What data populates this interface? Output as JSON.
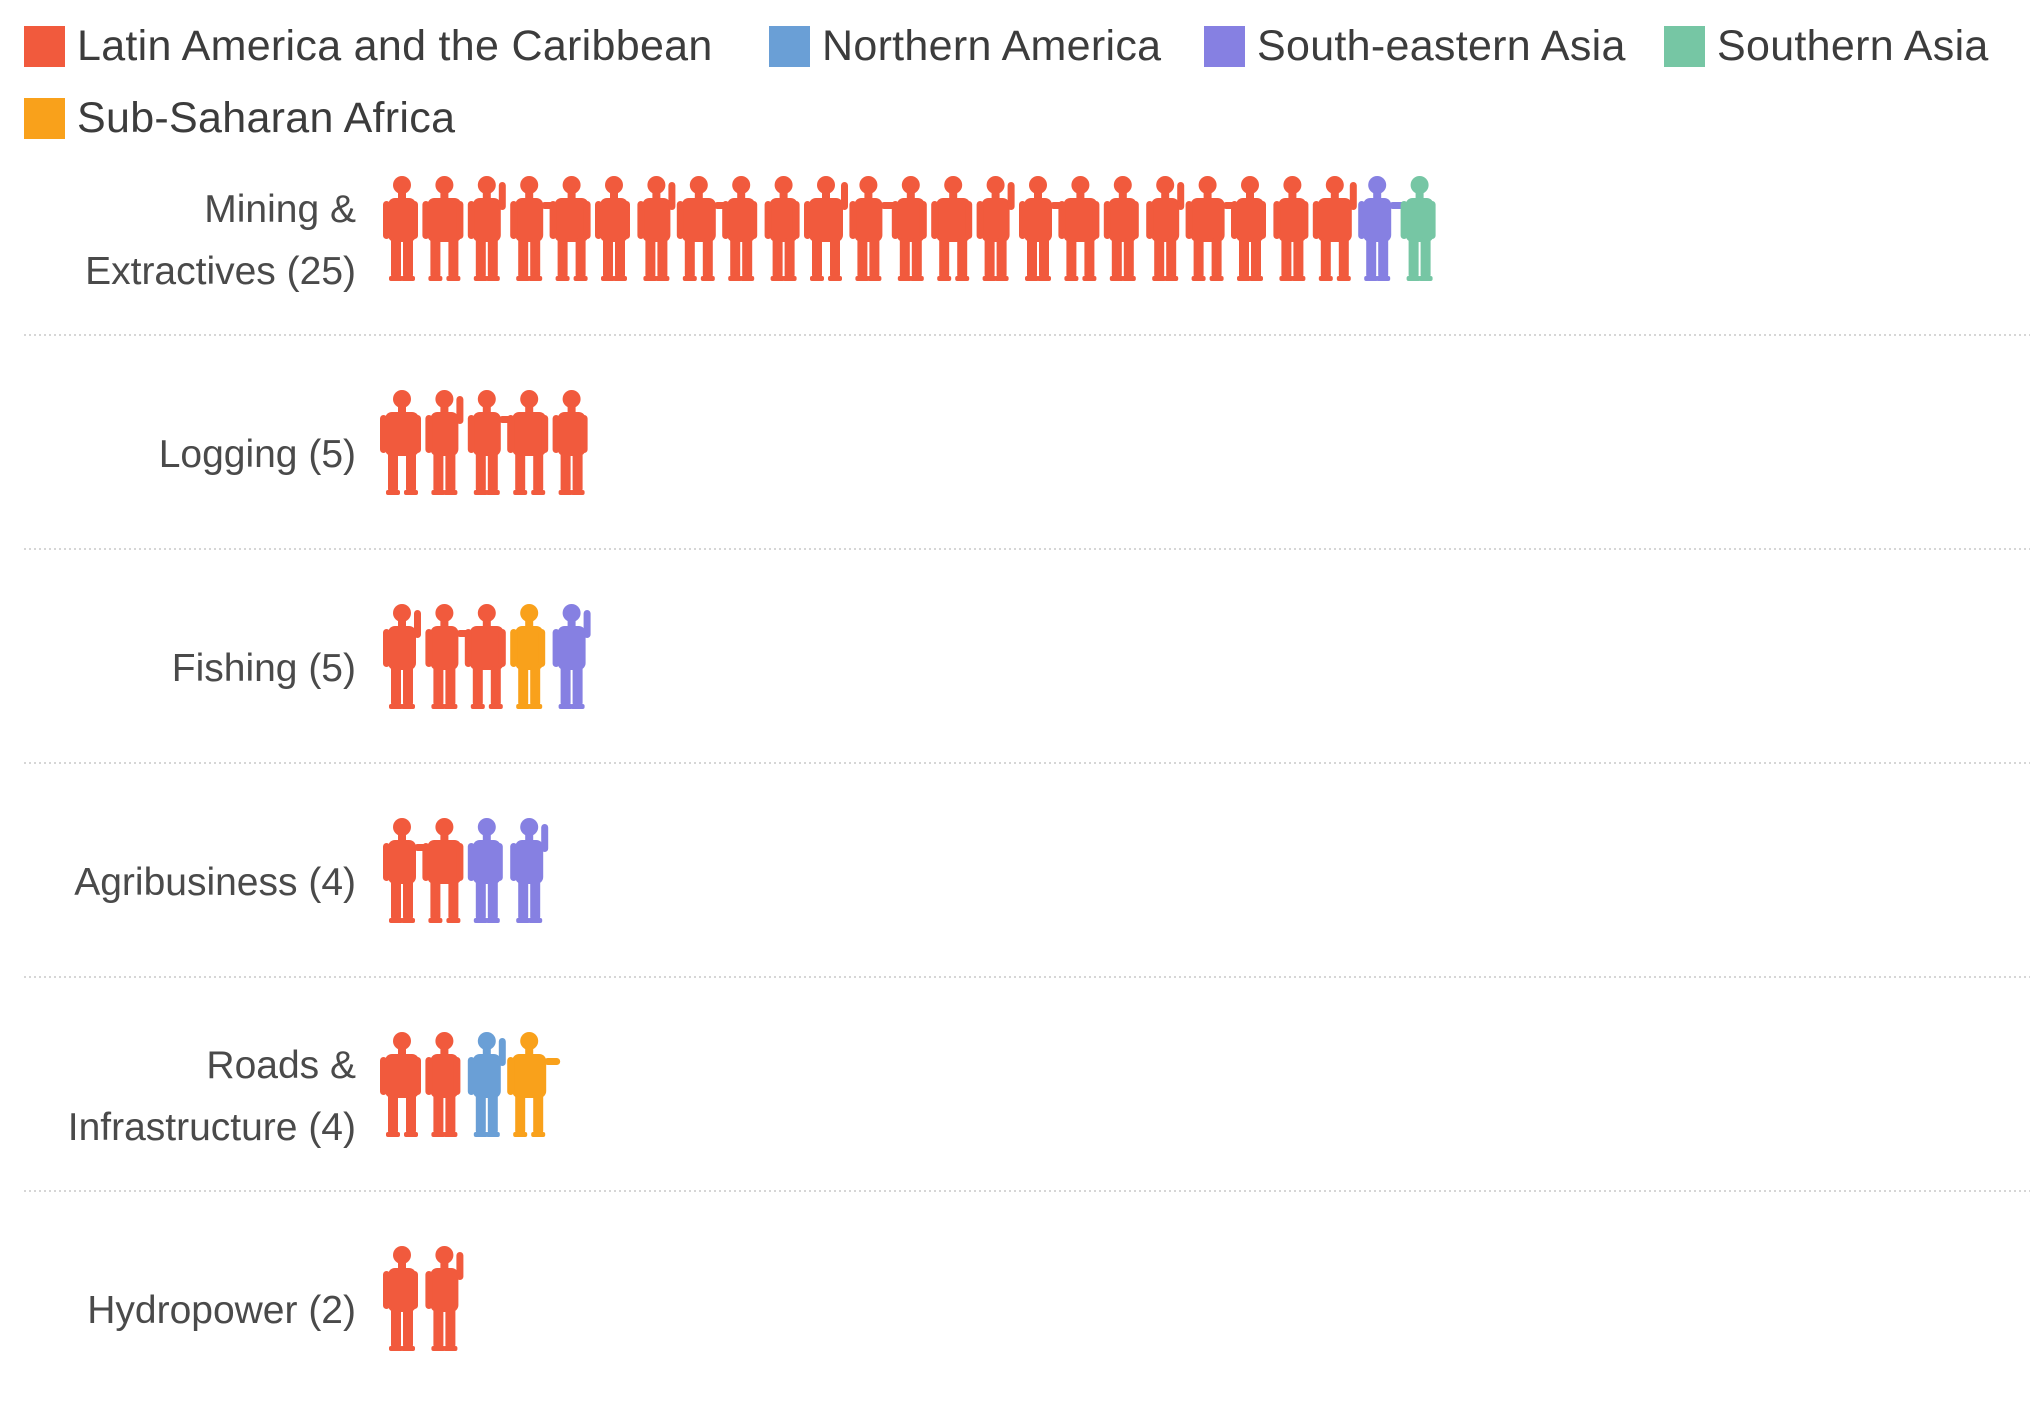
{
  "chart_data": {
    "type": "pictograph",
    "title": "",
    "legend": [
      {
        "key": "lac",
        "name": "Latin America and the Caribbean",
        "color": "#F15A3D"
      },
      {
        "key": "na",
        "name": "Northern America",
        "color": "#6A9FD6"
      },
      {
        "key": "sea",
        "name": "South-eastern Asia",
        "color": "#8680E2"
      },
      {
        "key": "sa",
        "name": "Southern Asia",
        "color": "#76C6A4"
      },
      {
        "key": "ssa",
        "name": "Sub-Saharan Africa",
        "color": "#F9A11B"
      }
    ],
    "categories": [
      {
        "label_lines": [
          "Mining &",
          "Extractives (25)"
        ],
        "total": 25,
        "counts": {
          "lac": 23,
          "na": 0,
          "sea": 1,
          "sa": 1,
          "ssa": 0
        },
        "icons": [
          "lac",
          "lac",
          "lac",
          "lac",
          "lac",
          "lac",
          "lac",
          "lac",
          "lac",
          "lac",
          "lac",
          "lac",
          "lac",
          "lac",
          "lac",
          "lac",
          "lac",
          "lac",
          "lac",
          "lac",
          "lac",
          "lac",
          "lac",
          "sea",
          "sa"
        ]
      },
      {
        "label_lines": [
          "Logging (5)"
        ],
        "total": 5,
        "counts": {
          "lac": 5,
          "na": 0,
          "sea": 0,
          "sa": 0,
          "ssa": 0
        },
        "icons": [
          "lac",
          "lac",
          "lac",
          "lac",
          "lac"
        ]
      },
      {
        "label_lines": [
          "Fishing (5)"
        ],
        "total": 5,
        "counts": {
          "lac": 3,
          "na": 0,
          "sea": 1,
          "sa": 0,
          "ssa": 1
        },
        "icons": [
          "lac",
          "lac",
          "lac",
          "ssa",
          "sea"
        ]
      },
      {
        "label_lines": [
          "Agribusiness (4)"
        ],
        "total": 4,
        "counts": {
          "lac": 2,
          "na": 0,
          "sea": 2,
          "sa": 0,
          "ssa": 0
        },
        "icons": [
          "lac",
          "lac",
          "sea",
          "sea"
        ]
      },
      {
        "label_lines": [
          "Roads &",
          "Infrastructure (4)"
        ],
        "total": 4,
        "counts": {
          "lac": 2,
          "na": 1,
          "sea": 0,
          "sa": 0,
          "ssa": 1
        },
        "icons": [
          "lac",
          "lac",
          "na",
          "ssa"
        ]
      },
      {
        "label_lines": [
          "Hydropower (2)"
        ],
        "total": 2,
        "counts": {
          "lac": 2,
          "na": 0,
          "sea": 0,
          "sa": 0,
          "ssa": 0
        },
        "icons": [
          "lac",
          "lac"
        ]
      }
    ]
  }
}
